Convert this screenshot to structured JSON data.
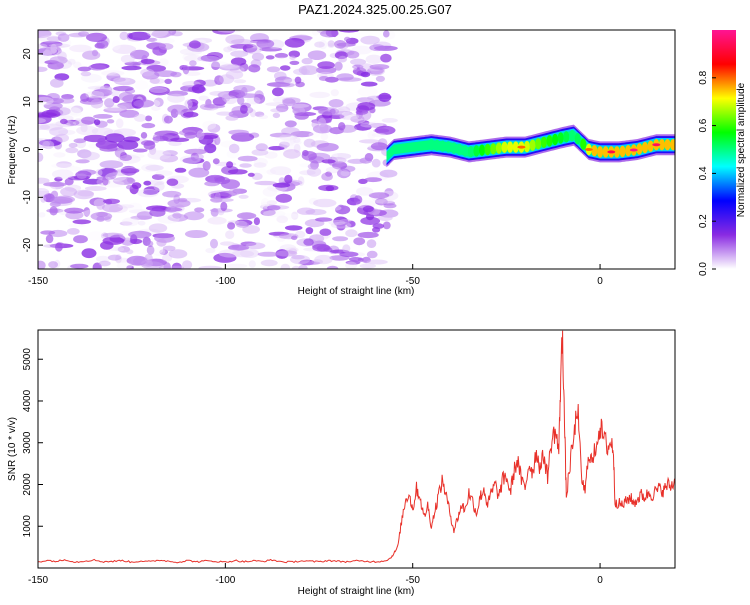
{
  "title": "PAZ1.2024.325.00.25.G07",
  "chart_data": [
    {
      "type": "heatmap",
      "xlabel": "Height of straight line (km)",
      "ylabel": "Frequency (Hz)",
      "xlim": [
        -150,
        20
      ],
      "ylim": [
        -25,
        25
      ],
      "xticks": [
        -150,
        -100,
        -50,
        0
      ],
      "yticks": [
        -20,
        -10,
        0,
        10,
        20
      ],
      "colorbar": {
        "label": "Normalized spectral amplitude",
        "range": [
          0,
          1
        ],
        "ticks": [
          0.0,
          0.2,
          0.4,
          0.6,
          0.8
        ],
        "tick_labels": [
          "0.0",
          "0.2",
          "0.4",
          "0.6",
          "0.8"
        ],
        "colors": [
          "#ffffff",
          "#8a2be2",
          "#0000ff",
          "#00ffff",
          "#00ff00",
          "#ffff00",
          "#ff0000",
          "#ff1493"
        ]
      },
      "noise_region": {
        "x_range": [
          -150,
          -56
        ],
        "amplitude": [
          0.0,
          0.15
        ]
      },
      "signal_ridge": {
        "x": [
          -57,
          -55,
          -50,
          -45,
          -40,
          -35,
          -30,
          -25,
          -20,
          -15,
          -10,
          -7,
          -5,
          -3,
          0,
          5,
          10,
          15,
          20
        ],
        "frequency": [
          -1.5,
          0.0,
          0.5,
          1.0,
          0.5,
          -0.5,
          0.0,
          0.5,
          0.5,
          1.5,
          2.5,
          3.0,
          1.5,
          0.0,
          -0.5,
          -0.5,
          0.0,
          1.0,
          1.0
        ],
        "amplitude": [
          0.3,
          0.4,
          0.45,
          0.5,
          0.5,
          0.5,
          0.6,
          0.7,
          0.7,
          0.6,
          0.55,
          0.5,
          0.55,
          0.7,
          0.8,
          0.85,
          0.9,
          0.85,
          0.8
        ]
      }
    },
    {
      "type": "line",
      "xlabel": "Height of straight line (km)",
      "ylabel": "SNR (10 * v/v)",
      "xlim": [
        -150,
        20
      ],
      "ylim": [
        0,
        5700
      ],
      "xticks": [
        -150,
        -100,
        -50,
        0
      ],
      "yticks": [
        1000,
        2000,
        3000,
        4000,
        5000
      ],
      "series": [
        {
          "color": "#e8312a",
          "x": [
            -150,
            -147.5,
            -145,
            -142.5,
            -140,
            -137.5,
            -135,
            -132.5,
            -130,
            -127.5,
            -125,
            -122.5,
            -120,
            -117.5,
            -115,
            -112.5,
            -110,
            -107.5,
            -105,
            -102.5,
            -100,
            -97.5,
            -95,
            -92.5,
            -90,
            -87.5,
            -85,
            -82.5,
            -80,
            -77.5,
            -75,
            -72.5,
            -70,
            -67.5,
            -65,
            -62.5,
            -60,
            -57.5,
            -56,
            -55,
            -54,
            -53,
            -52,
            -51,
            -50,
            -49,
            -48,
            -47,
            -46,
            -45,
            -44,
            -43,
            -42,
            -41,
            -40,
            -39,
            -38,
            -37,
            -36,
            -35,
            -34,
            -33,
            -32,
            -31,
            -30,
            -29,
            -28,
            -27,
            -26,
            -25,
            -24,
            -23,
            -22,
            -21,
            -20,
            -19,
            -18,
            -17,
            -16,
            -15,
            -14,
            -13,
            -12,
            -11,
            -10.5,
            -10,
            -9.5,
            -9,
            -8,
            -7,
            -6,
            -5,
            -4,
            -3,
            -2,
            -1,
            0,
            1,
            2,
            3,
            3.5,
            4,
            5,
            6,
            7,
            8,
            9,
            10,
            11,
            12,
            13,
            14,
            15,
            16,
            17,
            18,
            19,
            20
          ],
          "y": [
            150,
            180,
            160,
            200,
            140,
            170,
            190,
            150,
            160,
            180,
            140,
            170,
            150,
            190,
            160,
            140,
            180,
            150,
            170,
            160,
            140,
            180,
            150,
            170,
            160,
            190,
            150,
            140,
            170,
            160,
            150,
            180,
            160,
            150,
            170,
            160,
            150,
            170,
            230,
            350,
            500,
            1100,
            1600,
            1800,
            1400,
            1900,
            1700,
            1200,
            1500,
            1000,
            1400,
            1800,
            2100,
            1700,
            1300,
            900,
            1200,
            1500,
            1400,
            1800,
            1600,
            1300,
            1700,
            1900,
            1500,
            1800,
            2000,
            1700,
            2100,
            2200,
            1800,
            2300,
            2600,
            2100,
            1900,
            2500,
            2300,
            2800,
            2400,
            2700,
            2200,
            3000,
            3300,
            2800,
            4600,
            5650,
            3500,
            1700,
            2500,
            3100,
            3900,
            2200,
            1800,
            2800,
            2500,
            3000,
            3400,
            3100,
            2900,
            3000,
            2900,
            1600,
            1550,
            1500,
            1600,
            1700,
            1550,
            1650,
            1750,
            1700,
            1800,
            1750,
            1850,
            1900,
            1850,
            2000,
            1950,
            2100
          ]
        }
      ]
    }
  ]
}
